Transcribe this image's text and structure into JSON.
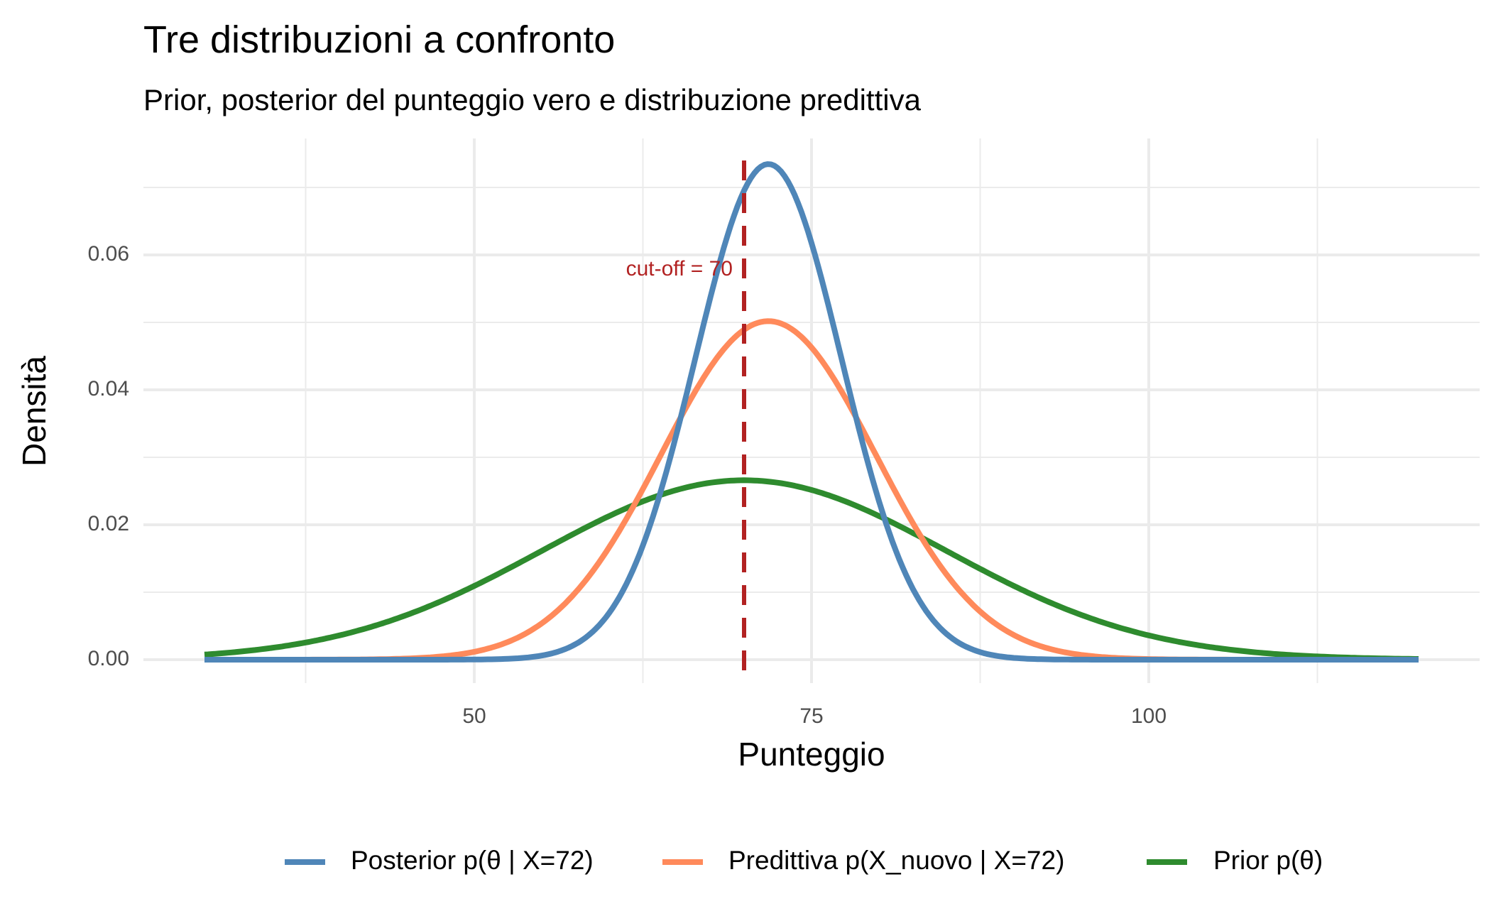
{
  "chart_data": {
    "type": "line",
    "title": "Tre distribuzioni a confronto",
    "subtitle": "Prior, posterior del punteggio vero e distribuzione predittiva",
    "xlabel": "Punteggio",
    "ylabel": "Densità",
    "xlim": [
      30,
      120
    ],
    "ylim": [
      0,
      0.075
    ],
    "x_ticks": [
      50,
      75,
      100
    ],
    "x_tick_labels": [
      "50",
      "75",
      "100"
    ],
    "y_ticks": [
      0,
      0.02,
      0.04,
      0.06
    ],
    "y_tick_labels": [
      "0.00",
      "0.02",
      "0.04",
      "0.06"
    ],
    "grid": true,
    "legend_position": "bottom",
    "series": [
      {
        "name": "Posterior p(θ | X=72)",
        "color": "#4F86B8",
        "distribution": "normal",
        "mean": 71.8,
        "sd": 5.43,
        "peak": 0.0735
      },
      {
        "name": "Predittiva p(X_nuovo | X=72)",
        "color": "#FF8A5B",
        "distribution": "normal",
        "mean": 71.8,
        "sd": 7.95,
        "peak": 0.0503
      },
      {
        "name": "Prior p(θ)",
        "color": "#2E8B2E",
        "distribution": "normal",
        "mean": 70,
        "sd": 15,
        "peak": 0.0266
      }
    ],
    "reference_line": {
      "x": 70,
      "color": "#B22222",
      "style": "dashed",
      "label": "cut-off = 70"
    }
  }
}
